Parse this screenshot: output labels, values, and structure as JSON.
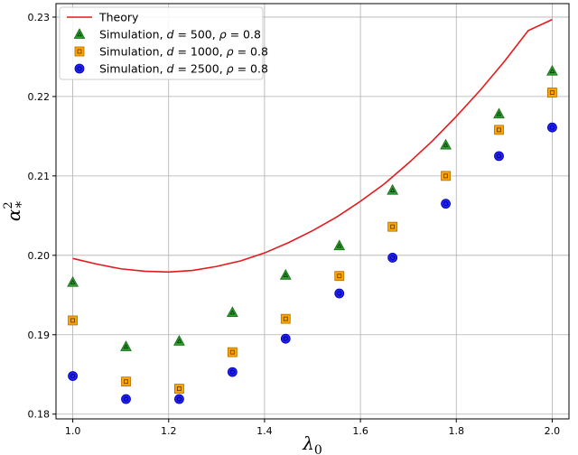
{
  "chart_data": {
    "type": "scatter",
    "title": "",
    "xlabel": "λ",
    "xlabel_sub": "0",
    "ylabel": "α",
    "ylabel_sup": "2",
    "ylabel_sub": "*",
    "xlim": [
      0.965,
      2.035
    ],
    "ylim": [
      0.1794,
      0.2317
    ],
    "xticks": [
      1.0,
      1.2,
      1.4,
      1.6,
      1.8,
      2.0
    ],
    "xtick_labels": [
      "1.0",
      "1.2",
      "1.4",
      "1.6",
      "1.8",
      "2.0"
    ],
    "yticks": [
      0.18,
      0.19,
      0.2,
      0.21,
      0.22,
      0.23
    ],
    "ytick_labels": [
      "0.18",
      "0.19",
      "0.20",
      "0.21",
      "0.22",
      "0.23"
    ],
    "grid": true,
    "legend_position": "top-left",
    "theory": {
      "name": "Theory",
      "color": "#e41a1c",
      "x": [
        1.0,
        1.05,
        1.1,
        1.15,
        1.2,
        1.25,
        1.3,
        1.35,
        1.4,
        1.45,
        1.5,
        1.55,
        1.6,
        1.65,
        1.7,
        1.75,
        1.8,
        1.85,
        1.9,
        1.95,
        2.0
      ],
      "y": [
        0.1996,
        0.1989,
        0.1983,
        0.198,
        0.1979,
        0.1981,
        0.1986,
        0.1993,
        0.2003,
        0.2016,
        0.2031,
        0.2048,
        0.2068,
        0.209,
        0.2116,
        0.2144,
        0.2175,
        0.2208,
        0.2244,
        0.2283,
        0.2297
      ]
    },
    "series": [
      {
        "name_prefix": "Simulation, ",
        "name_var1": "d",
        "name_value1": " = 500, ",
        "name_var2": "ρ",
        "name_value2": " = 0.8",
        "marker": "triangle",
        "color": "#2ca02c",
        "x": [
          1.0,
          1.111,
          1.222,
          1.333,
          1.444,
          1.556,
          1.667,
          1.778,
          1.889,
          2.0
        ],
        "y": [
          0.1966,
          0.1885,
          0.1892,
          0.1928,
          0.1975,
          0.2012,
          0.2082,
          0.2139,
          0.2178,
          0.2232
        ]
      },
      {
        "name_prefix": "Simulation, ",
        "name_var1": "d",
        "name_value1": " = 1000, ",
        "name_var2": "ρ",
        "name_value2": " = 0.8",
        "marker": "square",
        "color": "#ffa500",
        "x": [
          1.0,
          1.111,
          1.222,
          1.333,
          1.444,
          1.556,
          1.667,
          1.778,
          1.889,
          2.0
        ],
        "y": [
          0.1918,
          0.1841,
          0.1832,
          0.1878,
          0.192,
          0.1974,
          0.2036,
          0.21,
          0.2158,
          0.2205
        ]
      },
      {
        "name_prefix": "Simulation, ",
        "name_var1": "d",
        "name_value1": " = 2500, ",
        "name_var2": "ρ",
        "name_value2": " = 0.8",
        "marker": "circle",
        "color": "#1f1fff",
        "x": [
          1.0,
          1.111,
          1.222,
          1.333,
          1.444,
          1.556,
          1.667,
          1.778,
          1.889,
          2.0
        ],
        "y": [
          0.1848,
          0.1819,
          0.1819,
          0.1853,
          0.1895,
          0.1952,
          0.1997,
          0.2065,
          0.2125,
          0.2161
        ]
      }
    ]
  }
}
